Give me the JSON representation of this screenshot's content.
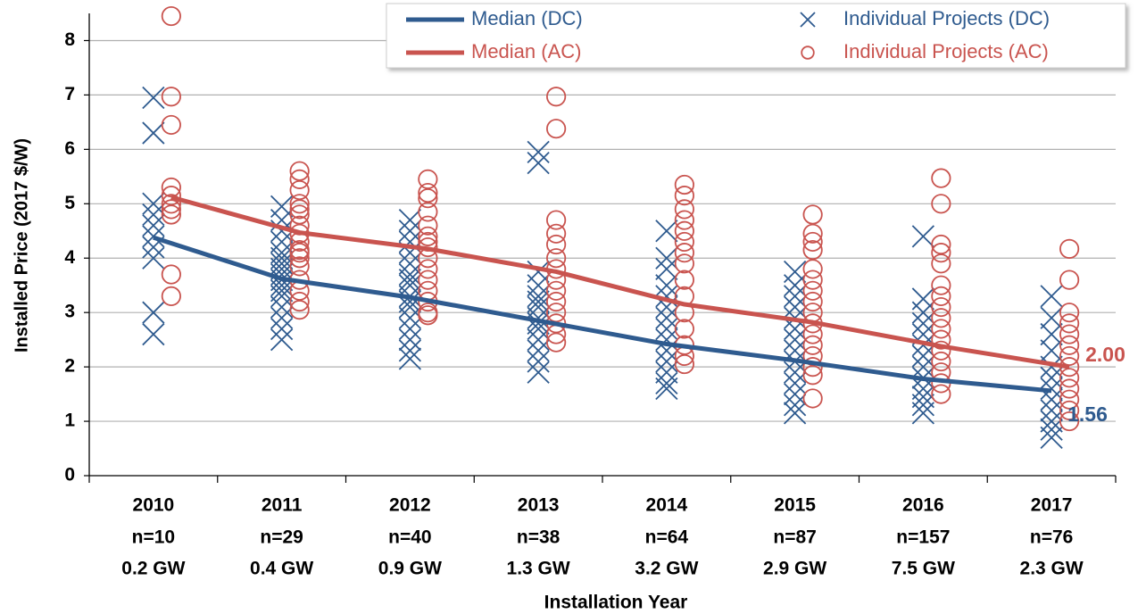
{
  "chart_data": {
    "type": "line",
    "y_label": "Installed Price (2017 $/W)",
    "x_label": "Installation Year",
    "categories": [
      "2010",
      "2011",
      "2012",
      "2013",
      "2014",
      "2015",
      "2016",
      "2017"
    ],
    "category_counts": [
      "n=10",
      "n=29",
      "n=40",
      "n=38",
      "n=64",
      "n=87",
      "n=157",
      "n=76"
    ],
    "category_capacity": [
      "0.2 GW",
      "0.4 GW",
      "0.9 GW",
      "1.3 GW",
      "3.2 GW",
      "2.9 GW",
      "7.5 GW",
      "2.3 GW"
    ],
    "ylim": [
      0,
      8.5
    ],
    "yticks": [
      0,
      1,
      2,
      3,
      4,
      5,
      6,
      7,
      8
    ],
    "grid": true,
    "legend": "top-right",
    "series": [
      {
        "name": "Individual Projects (DC)",
        "type": "scatter",
        "marker": "x",
        "color": "#2f5b8f",
        "values": [
          [
            6.95,
            6.3,
            5.0,
            4.8,
            4.6,
            4.4,
            4.2,
            4.0,
            3.0,
            2.6
          ],
          [
            4.95,
            4.7,
            4.5,
            4.3,
            4.1,
            4.0,
            3.9,
            3.8,
            3.7,
            3.6,
            3.5,
            3.4,
            3.3,
            3.1,
            2.9,
            2.7,
            2.5
          ],
          [
            4.7,
            4.5,
            4.3,
            4.1,
            3.9,
            3.7,
            3.6,
            3.5,
            3.3,
            3.2,
            3.1,
            2.9,
            2.7,
            2.5,
            2.3,
            2.15
          ],
          [
            5.95,
            5.75,
            3.75,
            3.5,
            3.3,
            3.2,
            3.1,
            2.9,
            2.8,
            2.7,
            2.5,
            2.3,
            2.1,
            1.9
          ],
          [
            4.5,
            4.0,
            3.8,
            3.5,
            3.3,
            3.1,
            2.9,
            2.7,
            2.5,
            2.3,
            2.1,
            1.9,
            1.7,
            1.6
          ],
          [
            3.75,
            3.5,
            3.3,
            3.1,
            2.9,
            2.7,
            2.5,
            2.3,
            2.1,
            1.9,
            1.7,
            1.5,
            1.3,
            1.15
          ],
          [
            4.4,
            3.25,
            3.0,
            2.8,
            2.6,
            2.4,
            2.2,
            2.0,
            1.8,
            1.6,
            1.45,
            1.3,
            1.15
          ],
          [
            3.3,
            2.9,
            2.6,
            2.3,
            2.0,
            1.8,
            1.6,
            1.4,
            1.2,
            1.0,
            0.85,
            0.7
          ]
        ]
      },
      {
        "name": "Individual Projects (AC)",
        "type": "scatter",
        "marker": "o",
        "color": "#c9544f",
        "values": [
          [
            8.45,
            6.97,
            6.45,
            5.3,
            5.15,
            5.0,
            4.9,
            4.8,
            3.7,
            3.3
          ],
          [
            5.6,
            5.45,
            5.25,
            5.0,
            4.9,
            4.8,
            4.6,
            4.45,
            4.3,
            4.15,
            4.1,
            4.0,
            3.85,
            3.6,
            3.4,
            3.2,
            3.05
          ],
          [
            5.45,
            5.2,
            5.1,
            4.85,
            4.6,
            4.4,
            4.3,
            4.2,
            4.0,
            3.8,
            3.6,
            3.4,
            3.2,
            3.0,
            2.95
          ],
          [
            6.97,
            6.38,
            4.7,
            4.45,
            4.25,
            4.0,
            3.8,
            3.6,
            3.4,
            3.2,
            3.0,
            2.8,
            2.6,
            2.45
          ],
          [
            5.35,
            5.15,
            4.9,
            4.7,
            4.5,
            4.3,
            4.1,
            3.9,
            3.6,
            3.3,
            3.0,
            2.7,
            2.4,
            2.2,
            2.05
          ],
          [
            4.8,
            4.45,
            4.3,
            4.15,
            3.8,
            3.6,
            3.4,
            3.2,
            3.0,
            2.8,
            2.6,
            2.4,
            2.2,
            2.0,
            1.85,
            1.42
          ],
          [
            5.47,
            5.0,
            4.25,
            4.1,
            3.9,
            3.5,
            3.3,
            3.1,
            2.9,
            2.7,
            2.5,
            2.3,
            2.1,
            1.9,
            1.7,
            1.5
          ],
          [
            4.17,
            3.6,
            3.0,
            2.8,
            2.6,
            2.4,
            2.2,
            2.0,
            1.8,
            1.6,
            1.4,
            1.2,
            1.0
          ]
        ]
      },
      {
        "name": "Median (DC)",
        "type": "line",
        "color": "#2f5b8f",
        "values": [
          4.38,
          3.62,
          3.28,
          2.85,
          2.42,
          2.12,
          1.78,
          1.56
        ],
        "value_labels": [
          null,
          null,
          null,
          null,
          null,
          null,
          null,
          "1.56"
        ]
      },
      {
        "name": "Median (AC)",
        "type": "line",
        "color": "#c9544f",
        "values": [
          5.12,
          4.47,
          4.17,
          3.75,
          3.15,
          2.82,
          2.38,
          2.0
        ],
        "value_labels": [
          null,
          null,
          null,
          null,
          null,
          null,
          null,
          "2.00"
        ]
      }
    ]
  }
}
